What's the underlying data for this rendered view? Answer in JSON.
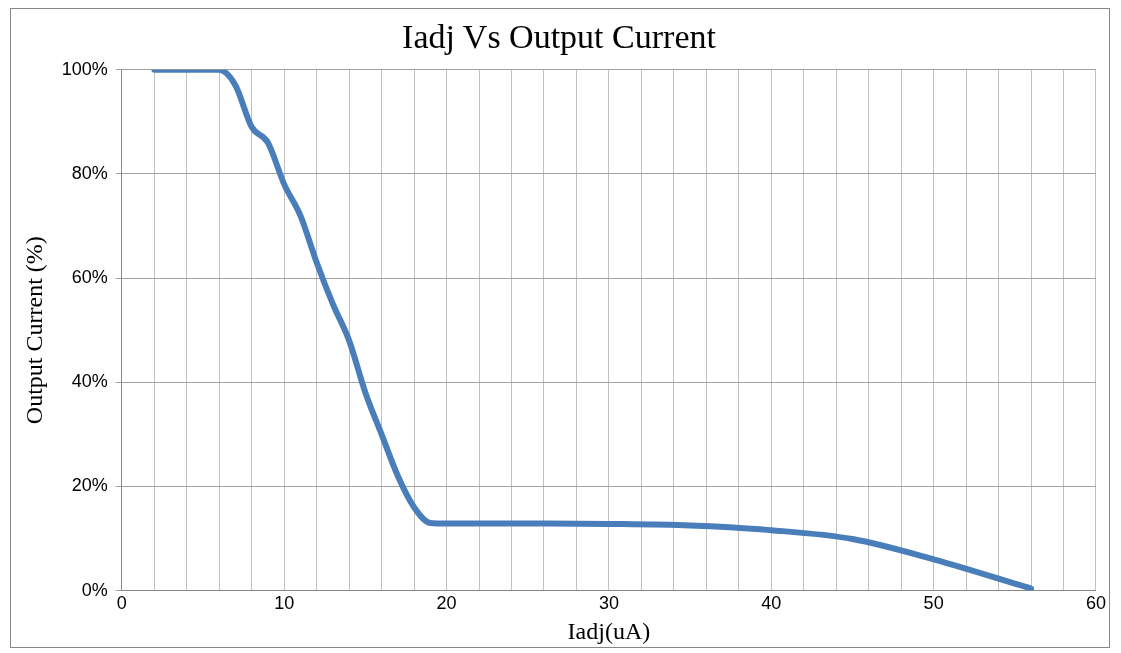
{
  "chart_data": {
    "type": "line",
    "title": "Iadj Vs Output Current",
    "xlabel": "Iadj(uA)",
    "ylabel": "Output Current (%)",
    "x": [
      2,
      4,
      5,
      6,
      7,
      8,
      9,
      10,
      11,
      12,
      13,
      14,
      15,
      16,
      17,
      18,
      19,
      20,
      25,
      30,
      35,
      40,
      45,
      50,
      56
    ],
    "series": [
      {
        "color": "#4a7ebb",
        "values": [
          100,
          100,
          100,
          100,
          97,
          89,
          86,
          78,
          72,
          63,
          55,
          48,
          38,
          30,
          22,
          16,
          13,
          12.9,
          12.9,
          12.8,
          12.5,
          11.6,
          9.9,
          6,
          0.4
        ]
      }
    ],
    "xlim": [
      0,
      60
    ],
    "xticks": [
      0,
      {
        "value": 2,
        "label": null
      },
      {
        "value": 4,
        "label": null
      },
      {
        "value": 6,
        "label": null
      },
      {
        "value": 8,
        "label": null
      },
      10,
      {
        "value": 12,
        "label": null
      },
      {
        "value": 14,
        "label": null
      },
      {
        "value": 16,
        "label": null
      },
      {
        "value": 18,
        "label": null
      },
      20,
      {
        "value": 22,
        "label": null
      },
      {
        "value": 24,
        "label": null
      },
      {
        "value": 26,
        "label": null
      },
      {
        "value": 28,
        "label": null
      },
      30,
      {
        "value": 32,
        "label": null
      },
      {
        "value": 34,
        "label": null
      },
      {
        "value": 36,
        "label": null
      },
      {
        "value": 38,
        "label": null
      },
      40,
      {
        "value": 42,
        "label": null
      },
      {
        "value": 44,
        "label": null
      },
      {
        "value": 46,
        "label": null
      },
      {
        "value": 48,
        "label": null
      },
      50,
      {
        "value": 52,
        "label": null
      },
      {
        "value": 54,
        "label": null
      },
      {
        "value": 56,
        "label": null
      },
      {
        "value": 58,
        "label": null
      },
      60
    ],
    "ylim": [
      0,
      100
    ],
    "yticks": [
      {
        "value": 0,
        "label": "0%"
      },
      {
        "value": 20,
        "label": "20%"
      },
      {
        "value": 40,
        "label": "40%"
      },
      {
        "value": 60,
        "label": "60%"
      },
      {
        "value": 80,
        "label": "80%"
      },
      {
        "value": 100,
        "label": "100%"
      }
    ],
    "grid": true,
    "legend": false,
    "marker": "none",
    "line_style": "solid"
  }
}
